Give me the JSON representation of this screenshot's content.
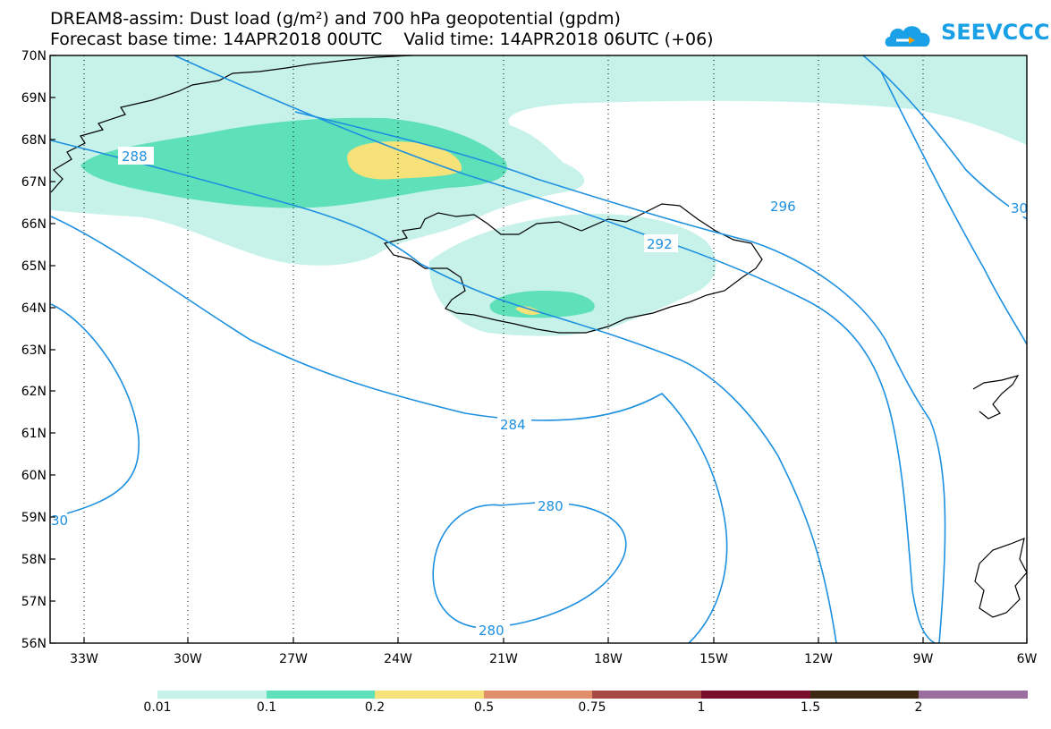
{
  "header": {
    "title_line1": "DREAM8-assim: Dust load (g/m²) and 700 hPa geopotential (gpdm)",
    "title_line2": "Forecast base time: 14APR2018 00UTC    Valid time: 14APR2018 06UTC (+06)"
  },
  "logo": {
    "text": "SEEVCCC",
    "icon": "cloud-logo-icon"
  },
  "map": {
    "lat_labels": [
      "70N",
      "69N",
      "68N",
      "67N",
      "66N",
      "65N",
      "64N",
      "63N",
      "62N",
      "61N",
      "60N",
      "59N",
      "58N",
      "57N",
      "56N"
    ],
    "lon_labels": [
      "33W",
      "30W",
      "27W",
      "24W",
      "21W",
      "18W",
      "15W",
      "12W",
      "9W",
      "6W"
    ],
    "contour_labels": [
      "288",
      "292",
      "296",
      "30",
      "284",
      "280",
      "280",
      "30"
    ],
    "grid": "dotted",
    "colors": {
      "contour": "#1e90e0",
      "coast": "#000000"
    }
  },
  "colorbar": {
    "labels": [
      "0.01",
      "0.1",
      "0.2",
      "0.5",
      "0.75",
      "1",
      "1.5",
      "2"
    ],
    "colors": [
      "#c6f2ea",
      "#5ee0b8",
      "#f7e27a",
      "#e08f6a",
      "#a84a44",
      "#7a0e2e",
      "#3e2814",
      "#9a6fa0"
    ]
  }
}
